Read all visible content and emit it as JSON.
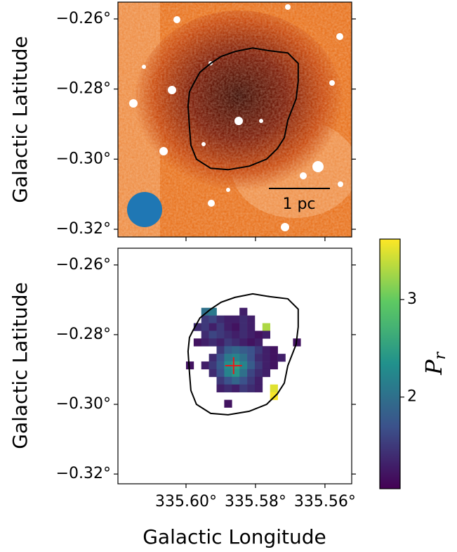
{
  "chart_data": [
    {
      "type": "image",
      "ylabel": "Galactic Latitude",
      "xlim": [
        335.6196,
        335.5523
      ],
      "ylim": [
        -0.3222,
        -0.2552
      ],
      "xticks": [
        335.6,
        335.58,
        335.56
      ],
      "yticks": [
        {
          "value": -0.26,
          "label": "−0.26°"
        },
        {
          "value": -0.28,
          "label": "−0.28°"
        },
        {
          "value": -0.3,
          "label": "−0.30°"
        },
        {
          "value": -0.32,
          "label": "−0.32°"
        }
      ],
      "annotation": "1 pc",
      "contour_color": "#000000"
    },
    {
      "type": "heatmap",
      "xlabel": "Galactic Longitude",
      "ylabel": "Galactic Latitude",
      "xlim": [
        335.6196,
        335.5523
      ],
      "ylim": [
        -0.3228,
        -0.2552
      ],
      "xticks": [
        {
          "value": 335.6,
          "label": "335.60°"
        },
        {
          "value": 335.58,
          "label": "335.58°"
        },
        {
          "value": 335.56,
          "label": "335.56°"
        }
      ],
      "yticks": [
        {
          "value": -0.26,
          "label": "−0.26°"
        },
        {
          "value": -0.28,
          "label": "−0.28°"
        },
        {
          "value": -0.3,
          "label": "−0.30°"
        },
        {
          "value": -0.32,
          "label": "−0.32°"
        }
      ],
      "x": [
        335.5989,
        335.5967,
        335.5945,
        335.5923,
        335.5901,
        335.5879,
        335.5857,
        335.5835,
        335.5813,
        335.5791,
        335.5769,
        335.5747,
        335.5725,
        335.5703,
        335.5681
      ],
      "y": [
        -0.2734,
        -0.2756,
        -0.2778,
        -0.28,
        -0.2822,
        -0.2844,
        -0.2866,
        -0.2888,
        -0.291,
        -0.2932,
        -0.2954,
        -0.2976,
        -0.2998
      ],
      "z": [
        [
          null,
          null,
          2.0,
          2.1,
          null,
          null,
          null,
          1.3,
          null,
          null,
          null,
          null,
          null,
          null,
          null
        ],
        [
          null,
          null,
          1.5,
          1.6,
          1.4,
          1.3,
          1.3,
          1.4,
          1.3,
          null,
          null,
          null,
          null,
          null,
          null
        ],
        [
          null,
          1.4,
          1.5,
          1.3,
          1.5,
          1.3,
          1.2,
          1.4,
          1.3,
          null,
          3.3,
          null,
          null,
          null,
          null
        ],
        [
          null,
          null,
          1.4,
          1.6,
          1.5,
          1.4,
          1.3,
          1.4,
          1.3,
          1.2,
          1.3,
          null,
          null,
          null,
          null
        ],
        [
          null,
          1.2,
          1.3,
          1.4,
          1.3,
          1.5,
          1.4,
          1.3,
          1.2,
          1.3,
          null,
          null,
          null,
          null,
          1.2
        ],
        [
          null,
          null,
          null,
          null,
          1.5,
          1.8,
          1.9,
          1.8,
          1.7,
          1.5,
          1.3,
          1.2,
          null,
          null,
          null
        ],
        [
          null,
          null,
          null,
          1.4,
          1.7,
          2.1,
          2.2,
          2.0,
          1.7,
          1.4,
          1.3,
          1.2,
          1.3,
          null,
          null
        ],
        [
          1.2,
          null,
          1.3,
          1.5,
          1.8,
          2.3,
          2.5,
          2.2,
          1.8,
          1.5,
          1.3,
          1.2,
          null,
          null,
          null
        ],
        [
          null,
          null,
          null,
          1.4,
          1.7,
          2.2,
          2.4,
          2.0,
          1.6,
          1.4,
          1.3,
          null,
          null,
          null,
          null
        ],
        [
          null,
          null,
          null,
          null,
          1.5,
          1.7,
          1.9,
          1.7,
          1.5,
          1.3,
          null,
          null,
          null,
          null,
          null
        ],
        [
          null,
          null,
          null,
          null,
          1.3,
          1.4,
          1.3,
          1.5,
          1.4,
          1.3,
          null,
          3.5,
          null,
          null,
          null
        ],
        [
          null,
          null,
          null,
          null,
          null,
          null,
          null,
          null,
          null,
          null,
          null,
          3.6,
          null,
          null,
          null
        ],
        [
          null,
          null,
          null,
          null,
          null,
          1.2,
          null,
          null,
          null,
          null,
          null,
          null,
          null,
          null,
          null
        ]
      ],
      "colormap": "viridis",
      "clim": [
        1.06,
        3.62
      ],
      "cticks": [
        2,
        3
      ],
      "colorbar_label": [
        "P",
        "r"
      ],
      "marker": {
        "x": 335.5863,
        "y": -0.2889,
        "color": "#e41a1c"
      },
      "contour_color": "#000000"
    }
  ],
  "contour": {
    "x": [
      335.598,
      335.596,
      335.5929,
      335.5899,
      335.5859,
      335.5808,
      335.5758,
      335.5707,
      335.5677,
      335.5677,
      335.5683,
      335.5707,
      335.5717,
      335.5737,
      335.5768,
      335.5818,
      335.5879,
      335.5929,
      335.597,
      335.5986,
      335.599,
      335.5994,
      335.599,
      335.598
    ],
    "y": [
      -0.2788,
      -0.2752,
      -0.2727,
      -0.2707,
      -0.2693,
      -0.2683,
      -0.2691,
      -0.2697,
      -0.2727,
      -0.2778,
      -0.2828,
      -0.2889,
      -0.2939,
      -0.297,
      -0.3,
      -0.302,
      -0.303,
      -0.3026,
      -0.3,
      -0.296,
      -0.2909,
      -0.2848,
      -0.2808,
      -0.2788
    ]
  }
}
